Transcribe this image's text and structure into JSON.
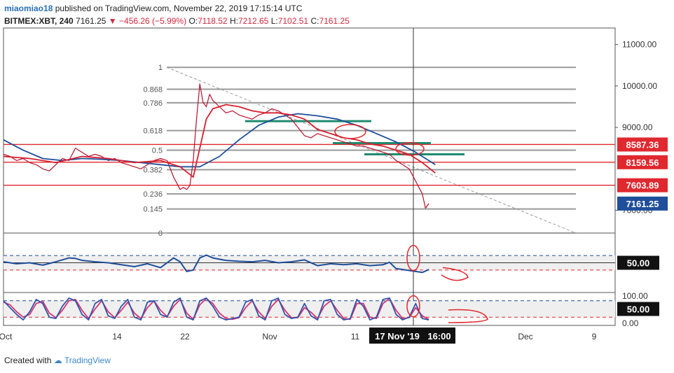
{
  "header": {
    "username": "miaomiao18",
    "published_text": "published on TradingView.com, November 22, 2019 17:15:14 UTC",
    "symbol": "BITMEX:XBT, 240",
    "last": "7161.25",
    "change": "−456.26 (−5.99%)",
    "o_label": "O:",
    "o_val": "7118.52",
    "h_label": "H:",
    "h_val": "7212.65",
    "l_label": "L:",
    "l_val": "7102.51",
    "c_label": "C:",
    "c_val": "7161.25"
  },
  "footer": {
    "created_with": "Created with",
    "brand": "TradingView"
  },
  "chart_data": [
    {
      "type": "line",
      "title": "BITMEX:XBT, 240",
      "xlabel": "",
      "ylabel": "",
      "ylim": [
        6450,
        11400
      ],
      "x_tick_labels": [
        "Oct",
        "14",
        "22",
        "Nov",
        "11",
        "17 Nov '19",
        "16:00",
        "Dec",
        "9"
      ],
      "y_tick_labels": [
        "11000.00",
        "10000.00",
        "9000.00",
        "7000.00"
      ],
      "price_tags": [
        {
          "value": 8587.36,
          "label": "8587.36",
          "color": "#e0282f"
        },
        {
          "value": 8159.56,
          "label": "8159.56",
          "color": "#e0282f"
        },
        {
          "value": 7603.89,
          "label": "7603.89",
          "color": "#e0282f"
        },
        {
          "value": 7161.25,
          "label": "7161.25",
          "color": "#1f4e9a"
        }
      ],
      "fibonacci": {
        "high": 10450,
        "low": 6450,
        "levels": [
          {
            "ratio": 1,
            "label": "1"
          },
          {
            "ratio": 0.868,
            "label": "0.868"
          },
          {
            "ratio": 0.786,
            "label": "0.786"
          },
          {
            "ratio": 0.618,
            "label": "0.618"
          },
          {
            "ratio": 0.5,
            "label": "0.5"
          },
          {
            "ratio": 0.382,
            "label": "0.382"
          },
          {
            "ratio": 0.236,
            "label": "0.236"
          },
          {
            "ratio": 0.145,
            "label": "0.145"
          },
          {
            "ratio": 0,
            "label": "0"
          }
        ]
      },
      "series": [
        {
          "color": "#b8112e",
          "x": [
            0,
            10,
            20,
            30,
            40,
            50,
            60,
            70,
            80,
            90,
            100,
            110,
            120,
            130,
            140,
            150,
            160,
            170,
            180,
            190,
            200,
            210,
            220,
            230,
            240,
            250,
            260,
            270,
            275,
            280,
            285,
            290,
            295,
            300,
            305,
            310,
            315,
            320,
            330,
            340,
            350,
            360,
            370,
            380,
            390,
            400,
            410,
            420,
            430,
            440,
            450,
            460,
            470,
            480,
            490,
            500,
            510,
            520,
            530,
            540,
            550,
            560,
            570,
            580,
            590,
            600,
            610,
            620,
            630,
            640,
            645,
            650
          ],
          "values": [
            8350,
            8300,
            8200,
            8250,
            8150,
            8100,
            8000,
            7950,
            8100,
            8250,
            8200,
            8500,
            8400,
            8300,
            8350,
            8300,
            8200,
            8250,
            8150,
            8100,
            8050,
            8000,
            8100,
            8200,
            8250,
            8200,
            7800,
            7500,
            7550,
            7500,
            7600,
            8200,
            9200,
            10050,
            9600,
            9500,
            9800,
            9650,
            9500,
            9350,
            9400,
            9300,
            9250,
            9200,
            9300,
            9350,
            9450,
            9400,
            9300,
            9200,
            9000,
            8800,
            8750,
            8850,
            8800,
            8750,
            8700,
            8650,
            8600,
            8550,
            8550,
            8500,
            8450,
            8400,
            8350,
            8200,
            8100,
            8000,
            7700,
            7400,
            7050,
            7161
          ]
        },
        {
          "color": "#d51f2f",
          "x": [
            0,
            40,
            80,
            120,
            160,
            200,
            240,
            270,
            290,
            300,
            310,
            320,
            340,
            360,
            380,
            400,
            420,
            440,
            460,
            480,
            500,
            520,
            540,
            560,
            580,
            600,
            620,
            640,
            660
          ],
          "values": [
            8300,
            8250,
            8150,
            8300,
            8250,
            8150,
            8200,
            8050,
            7800,
            8500,
            9200,
            9450,
            9550,
            9500,
            9400,
            9350,
            9350,
            9300,
            9200,
            8950,
            8850,
            8750,
            8700,
            8600,
            8550,
            8450,
            8350,
            8150,
            7900
          ]
        },
        {
          "color": "#1f4e9a",
          "x": [
            0,
            30,
            60,
            90,
            120,
            150,
            180,
            210,
            240,
            270,
            300,
            330,
            360,
            390,
            420,
            450,
            480,
            510,
            540,
            570,
            600,
            630,
            660
          ],
          "values": [
            8700,
            8450,
            8250,
            8200,
            8250,
            8230,
            8200,
            8150,
            8100,
            8050,
            8050,
            8300,
            8700,
            9050,
            9250,
            9330,
            9280,
            9200,
            9050,
            8850,
            8650,
            8400,
            8100
          ]
        }
      ]
    },
    {
      "type": "line",
      "title": "",
      "ylim": [
        0,
        100
      ],
      "levels": [
        {
          "value": 50,
          "label": "50.00"
        }
      ],
      "band": [
        35,
        65
      ],
      "series": [
        {
          "color": "#1f4e9a",
          "x": [
            0,
            20,
            40,
            60,
            80,
            100,
            110,
            120,
            140,
            160,
            180,
            200,
            220,
            240,
            260,
            270,
            280,
            290,
            300,
            310,
            320,
            340,
            360,
            380,
            400,
            420,
            440,
            460,
            480,
            500,
            520,
            540,
            560,
            580,
            590,
            600,
            620,
            640,
            650
          ],
          "values": [
            52,
            48,
            50,
            45,
            52,
            60,
            59,
            55,
            52,
            50,
            46,
            42,
            48,
            40,
            60,
            52,
            32,
            35,
            60,
            66,
            60,
            55,
            53,
            52,
            55,
            50,
            52,
            56,
            44,
            48,
            46,
            48,
            44,
            46,
            51,
            38,
            34,
            30,
            36
          ]
        }
      ]
    },
    {
      "type": "line",
      "title": "",
      "ylim": [
        0,
        100
      ],
      "tick_labels": [
        "100.00",
        "0.00"
      ],
      "levels": [
        {
          "value": 50,
          "label": "50.00"
        }
      ],
      "band": [
        20,
        80
      ],
      "series": [
        {
          "color": "#3355aa",
          "x": [
            0,
            10,
            20,
            30,
            40,
            50,
            60,
            70,
            80,
            90,
            100,
            110,
            120,
            130,
            140,
            150,
            160,
            170,
            180,
            190,
            200,
            210,
            220,
            230,
            240,
            250,
            260,
            270,
            280,
            290,
            300,
            310,
            320,
            330,
            340,
            350,
            360,
            370,
            380,
            390,
            400,
            410,
            420,
            430,
            440,
            450,
            460,
            470,
            480,
            490,
            500,
            510,
            520,
            530,
            540,
            550,
            560,
            570,
            580,
            590,
            600,
            610,
            620,
            630,
            640,
            650
          ],
          "values": [
            80,
            55,
            30,
            10,
            40,
            85,
            70,
            20,
            15,
            60,
            90,
            80,
            30,
            10,
            70,
            85,
            25,
            15,
            60,
            85,
            20,
            10,
            75,
            80,
            30,
            20,
            75,
            90,
            20,
            10,
            80,
            90,
            60,
            20,
            10,
            15,
            20,
            75,
            85,
            25,
            10,
            80,
            90,
            30,
            15,
            20,
            70,
            25,
            10,
            80,
            85,
            30,
            10,
            15,
            85,
            60,
            10,
            20,
            85,
            90,
            30,
            10,
            20,
            70,
            15,
            10
          ]
        },
        {
          "color": "#d63670",
          "x": [
            0,
            10,
            20,
            30,
            40,
            50,
            60,
            70,
            80,
            90,
            100,
            110,
            120,
            130,
            140,
            150,
            160,
            170,
            180,
            190,
            200,
            210,
            220,
            230,
            240,
            250,
            260,
            270,
            280,
            290,
            300,
            310,
            320,
            330,
            340,
            350,
            360,
            370,
            380,
            390,
            400,
            410,
            420,
            430,
            440,
            450,
            460,
            470,
            480,
            490,
            500,
            510,
            520,
            530,
            540,
            550,
            560,
            570,
            580,
            590,
            600,
            610,
            620,
            630,
            640,
            650
          ],
          "values": [
            75,
            65,
            40,
            20,
            30,
            70,
            78,
            35,
            18,
            45,
            80,
            85,
            45,
            15,
            50,
            80,
            40,
            18,
            45,
            75,
            35,
            15,
            55,
            80,
            45,
            22,
            60,
            85,
            35,
            12,
            65,
            88,
            70,
            35,
            15,
            12,
            18,
            55,
            80,
            40,
            15,
            60,
            85,
            45,
            18,
            18,
            55,
            38,
            15,
            60,
            80,
            45,
            15,
            12,
            70,
            70,
            20,
            15,
            70,
            88,
            45,
            15,
            18,
            55,
            25,
            12
          ]
        }
      ]
    }
  ]
}
